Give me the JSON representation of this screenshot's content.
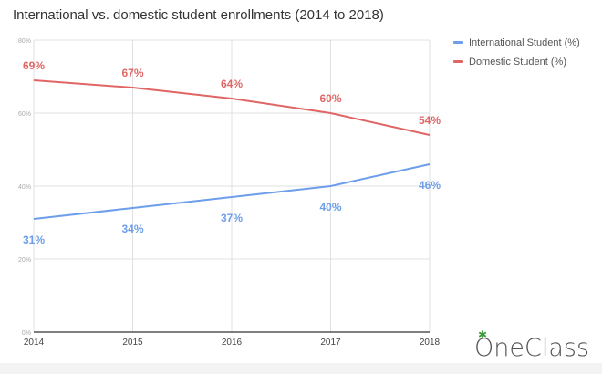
{
  "chart_data": {
    "type": "line",
    "title": "International vs. domestic student enrollments (2014 to 2018)",
    "categories": [
      "2014",
      "2015",
      "2016",
      "2017",
      "2018"
    ],
    "series": [
      {
        "name": "International Student (%)",
        "values": [
          31,
          34,
          37,
          40,
          46
        ],
        "labels": [
          "31%",
          "34%",
          "37%",
          "40%",
          "46%"
        ],
        "color": "#6d9eeb"
      },
      {
        "name": "Domestic Student (%)",
        "values": [
          69,
          67,
          64,
          60,
          54
        ],
        "labels": [
          "69%",
          "67%",
          "64%",
          "60%",
          "54%"
        ],
        "color": "#e06666"
      }
    ],
    "ylim": [
      0,
      80
    ],
    "yticks": [
      0,
      20,
      40,
      60,
      80
    ],
    "ytick_labels": [
      "0%",
      "20%",
      "40%",
      "60%",
      "80%"
    ],
    "xlabel": "",
    "ylabel": "",
    "grid": true,
    "legend": "top-right"
  },
  "watermark": "OneClass"
}
